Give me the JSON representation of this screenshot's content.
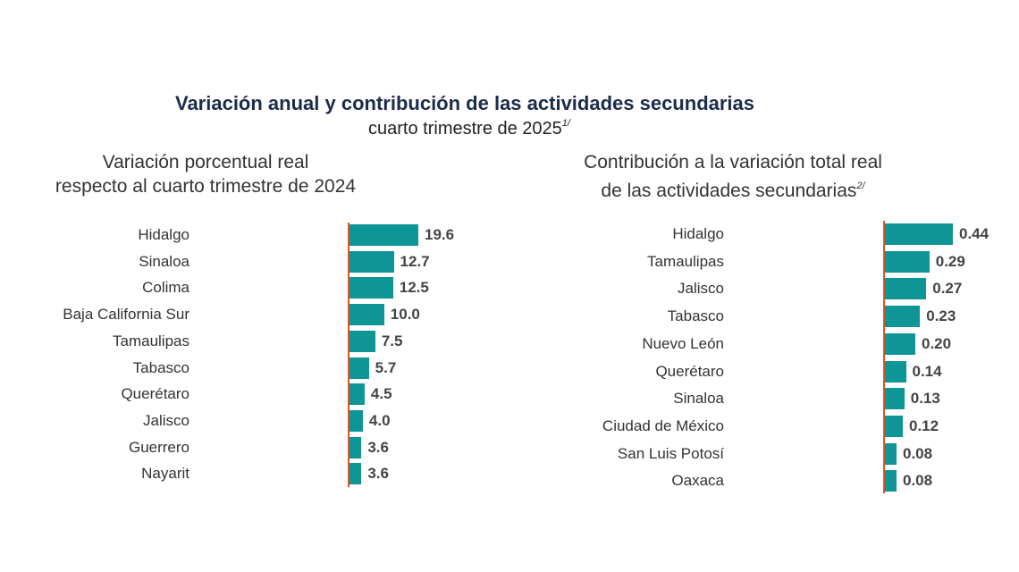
{
  "title": "Variación anual y contribución de las actividades secundarias",
  "subtitle": "cuarto trimestre de 2025",
  "subtitle_note": "1/",
  "colors": {
    "bar": "#0e9595",
    "axis": "#d9542b",
    "title": "#1c2b4a"
  },
  "chart_data": [
    {
      "type": "bar",
      "orientation": "horizontal",
      "title_line1": "Variación porcentual real",
      "title_line2": "respecto al cuarto trimestre de 2024",
      "categories": [
        "Hidalgo",
        "Sinaloa",
        "Colima",
        "Baja California Sur",
        "Tamaulipas",
        "Tabasco",
        "Querétaro",
        "Jalisco",
        "Guerrero",
        "Nayarit"
      ],
      "values": [
        19.6,
        12.7,
        12.5,
        10.0,
        7.5,
        5.7,
        4.5,
        4.0,
        3.6,
        3.6
      ],
      "labels": [
        "19.6",
        "12.7",
        "12.5",
        "10.0",
        "7.5",
        "5.7",
        "4.5",
        "4.0",
        "3.6",
        "3.6"
      ],
      "xlim": [
        0,
        20
      ],
      "grid": false
    },
    {
      "type": "bar",
      "orientation": "horizontal",
      "title_line1": "Contribución a la variación total real",
      "title_line2": "de las actividades secundarias",
      "title_note": "2/",
      "categories": [
        "Hidalgo",
        "Tamaulipas",
        "Jalisco",
        "Tabasco",
        "Nuevo León",
        "Querétaro",
        "Sinaloa",
        "Ciudad de México",
        "San Luis Potosí",
        "Oaxaca"
      ],
      "values": [
        0.44,
        0.29,
        0.27,
        0.23,
        0.2,
        0.14,
        0.13,
        0.12,
        0.08,
        0.08
      ],
      "labels": [
        "0.44",
        "0.29",
        "0.27",
        "0.23",
        "0.20",
        "0.14",
        "0.13",
        "0.12",
        "0.08",
        "0.08"
      ],
      "xlim": [
        0,
        0.45
      ],
      "grid": false
    }
  ]
}
